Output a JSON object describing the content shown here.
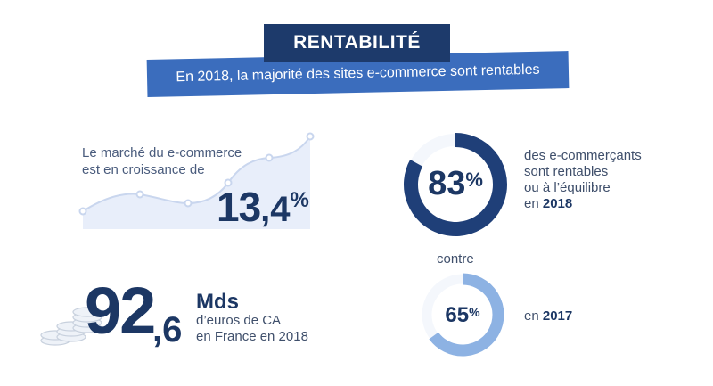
{
  "header": {
    "title": "RENTABILITÉ",
    "subtitle": "En 2018, la majorité des sites e-commerce sont rentables"
  },
  "growth": {
    "label_line1": "Le marché du e-commerce",
    "label_line2": "est en croissance de",
    "value_int": "13",
    "value_dec": ",4",
    "value_pct": "%"
  },
  "stat_2018": {
    "ring_value": "83",
    "ring_pct": "%",
    "fill_fraction": 0.83,
    "line1": "des e-commerçants",
    "line2": "sont rentables",
    "line3": "ou à l’équilibre",
    "year_prefix": "en ",
    "year": "2018"
  },
  "contre": "contre",
  "stat_2017": {
    "ring_value": "65",
    "ring_pct": "%",
    "fill_fraction": 0.65,
    "year_prefix": "en ",
    "year": "2017"
  },
  "revenue": {
    "int": "92",
    "dec": ",6",
    "unit": "Mds",
    "desc_line1": "d’euros de CA",
    "desc_line2": "en France en 2018"
  },
  "colors": {
    "navy": "#1d3a6b",
    "blue": "#3b6dbd",
    "ring_dark": "#1f3f78",
    "ring_light": "#8db2e3",
    "area": "#e8eefa"
  }
}
